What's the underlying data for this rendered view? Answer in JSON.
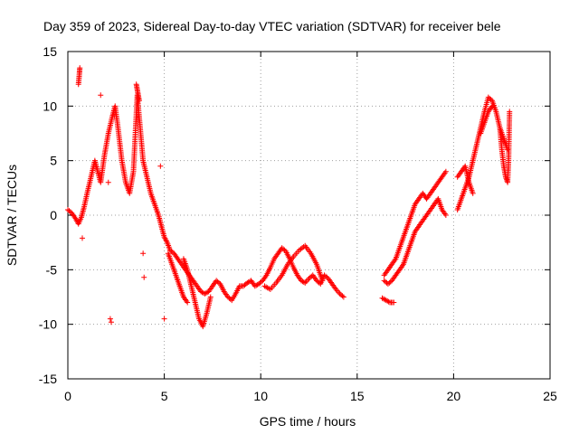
{
  "chart_data": {
    "type": "scatter",
    "title": "Day 359 of 2023, Sidereal Day-to-day VTEC variation (SDTVAR) for receiver bele",
    "xlabel": "GPS time / hours",
    "ylabel": "SDTVAR / TECUs",
    "xlim": [
      0,
      25
    ],
    "ylim": [
      -15,
      15
    ],
    "xticks": [
      0,
      5,
      10,
      15,
      20,
      25
    ],
    "yticks": [
      -15,
      -10,
      -5,
      0,
      5,
      10,
      15
    ],
    "grid": true,
    "marker": "+",
    "series": [
      {
        "name": "SDTVAR",
        "color": "#ff0000",
        "segments": [
          {
            "x": [
              0.0,
              0.2,
              0.4,
              0.55,
              0.7,
              0.85,
              1.0,
              1.2,
              1.4,
              1.55,
              1.7,
              1.9,
              2.1,
              2.3,
              2.45,
              2.6,
              2.8,
              3.0,
              3.2,
              3.4,
              3.6,
              3.75,
              3.9,
              4.1,
              4.3,
              4.5,
              4.7,
              4.85,
              5.0,
              5.15,
              5.3,
              5.5,
              5.7,
              5.9,
              6.1,
              6.3,
              6.5,
              6.7,
              6.9,
              7.1,
              7.3,
              7.5,
              7.7,
              7.9,
              8.1,
              8.3,
              8.5,
              8.7,
              8.9,
              9.1,
              9.3,
              9.5,
              9.7,
              9.9,
              10.1,
              10.3,
              10.5,
              10.7,
              10.9,
              11.1,
              11.3,
              11.5,
              11.7,
              11.9,
              12.1,
              12.3,
              12.5,
              12.7,
              12.9,
              13.1,
              13.3,
              13.5,
              13.7,
              13.9,
              14.1,
              14.3
            ],
            "y": [
              0.5,
              0.2,
              -0.3,
              -0.8,
              -0.2,
              0.8,
              2.0,
              3.5,
              5.0,
              4.0,
              3.0,
              5.5,
              7.5,
              9.0,
              10.0,
              8.0,
              5.0,
              3.0,
              2.0,
              4.0,
              11.0,
              8.0,
              5.0,
              3.5,
              2.0,
              1.0,
              0.0,
              -1.0,
              -2.0,
              -2.5,
              -3.2,
              -3.5,
              -4.0,
              -4.5,
              -5.0,
              -5.5,
              -6.0,
              -6.5,
              -7.0,
              -7.2,
              -7.0,
              -6.5,
              -6.0,
              -6.3,
              -7.0,
              -7.5,
              -7.8,
              -7.2,
              -6.5,
              -6.5,
              -6.2,
              -6.0,
              -6.5,
              -6.3,
              -6.0,
              -5.5,
              -4.8,
              -4.0,
              -3.5,
              -3.0,
              -3.3,
              -4.0,
              -4.8,
              -5.5,
              -6.0,
              -6.2,
              -5.8,
              -5.5,
              -6.0,
              -6.3,
              -5.5,
              -5.8,
              -6.3,
              -6.8,
              -7.2,
              -7.5
            ]
          },
          {
            "x": [
              6.0,
              6.2,
              6.4,
              6.6,
              6.8,
              7.0,
              7.2,
              7.4
            ],
            "y": [
              -4.0,
              -5.0,
              -6.5,
              -8.0,
              -9.5,
              -10.2,
              -9.0,
              -7.5
            ]
          },
          {
            "x": [
              5.2,
              5.4,
              5.6,
              5.8,
              6.0,
              6.2
            ],
            "y": [
              -3.5,
              -4.5,
              -5.5,
              -6.5,
              -7.5,
              -8.0
            ]
          },
          {
            "x": [
              10.2,
              10.5,
              10.8,
              11.1,
              11.4,
              11.7,
              12.0,
              12.3,
              12.6,
              12.9,
              13.2
            ],
            "y": [
              -6.5,
              -6.8,
              -6.2,
              -5.5,
              -4.5,
              -3.8,
              -3.2,
              -2.8,
              -3.5,
              -4.5,
              -6.0
            ]
          },
          {
            "x": [
              16.4,
              16.6,
              16.8,
              17.0,
              17.2,
              17.4,
              17.6,
              17.8,
              18.0,
              18.2,
              18.4,
              18.6,
              18.8,
              19.0,
              19.2,
              19.4,
              19.6
            ],
            "y": [
              -5.5,
              -5.0,
              -4.5,
              -4.0,
              -3.0,
              -2.0,
              -1.0,
              0.0,
              1.0,
              1.5,
              2.0,
              1.5,
              2.0,
              2.5,
              3.0,
              3.5,
              4.0
            ]
          },
          {
            "x": [
              16.4,
              16.6,
              16.8,
              17.0,
              17.2,
              17.4,
              17.6,
              17.8,
              18.0,
              18.2,
              18.4,
              18.6,
              18.8,
              19.0,
              19.2,
              19.4,
              19.6
            ],
            "y": [
              -6.0,
              -6.3,
              -6.0,
              -5.5,
              -5.0,
              -4.5,
              -3.5,
              -2.5,
              -1.5,
              -1.0,
              -0.5,
              0.0,
              0.5,
              1.0,
              1.5,
              0.5,
              0.0
            ]
          },
          {
            "x": [
              16.3,
              16.5,
              16.7,
              16.9
            ],
            "y": [
              -7.6,
              -7.8,
              -8.0,
              -8.0
            ]
          },
          {
            "x": [
              20.2,
              20.4,
              20.6,
              20.8,
              21.0,
              21.2,
              21.4,
              21.6,
              21.8,
              22.0,
              22.2,
              22.4,
              22.6,
              22.8
            ],
            "y": [
              0.5,
              1.5,
              2.5,
              3.5,
              5.0,
              6.5,
              8.0,
              9.5,
              10.8,
              10.5,
              9.5,
              8.0,
              7.0,
              6.0
            ]
          },
          {
            "x": [
              20.2,
              20.4,
              20.6,
              20.8,
              21.0
            ],
            "y": [
              3.5,
              4.0,
              4.5,
              3.0,
              2.0
            ]
          },
          {
            "x": [
              21.4,
              21.6,
              21.8,
              22.0
            ],
            "y": [
              7.5,
              8.5,
              9.5,
              10.0
            ]
          },
          {
            "x": [
              22.4,
              22.5,
              22.6,
              22.7,
              22.8,
              22.85,
              22.9
            ],
            "y": [
              8.0,
              6.0,
              4.5,
              3.5,
              3.0,
              5.0,
              9.5
            ]
          },
          {
            "x": [
              0.55,
              0.6,
              0.62
            ],
            "y": [
              12.0,
              13.0,
              13.5
            ]
          },
          {
            "x": [
              3.55,
              3.6,
              3.65,
              3.7
            ],
            "y": [
              12.0,
              11.5,
              11.0,
              10.5
            ]
          }
        ],
        "outliers": {
          "x": [
            0.75,
            1.7,
            2.1,
            2.2,
            2.25,
            3.9,
            3.95,
            4.8,
            5.0
          ],
          "y": [
            -2.1,
            11.0,
            3.0,
            -9.5,
            -9.8,
            -3.5,
            -5.7,
            4.5,
            -9.5
          ]
        }
      }
    ]
  }
}
